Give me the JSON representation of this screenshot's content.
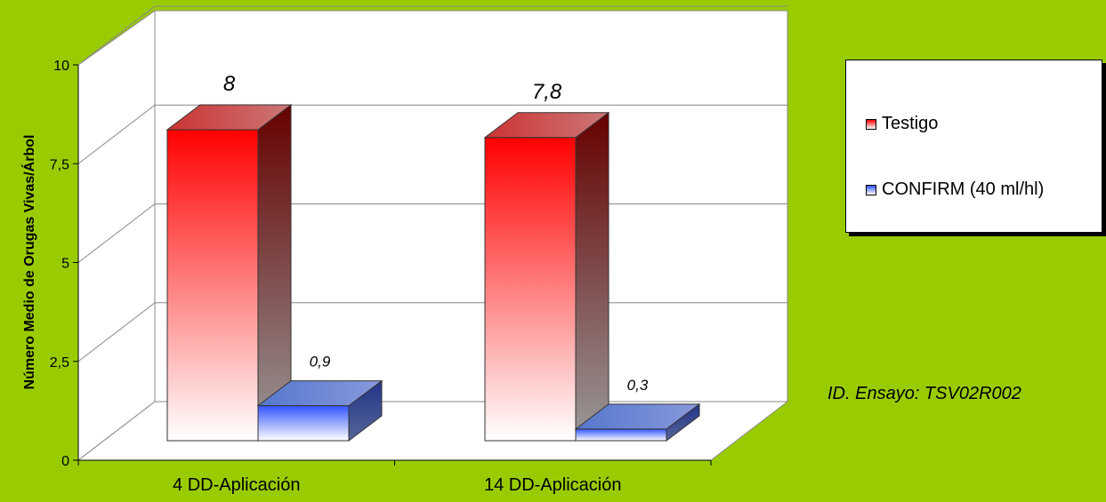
{
  "chart_data": {
    "type": "bar",
    "title": "",
    "xlabel": "",
    "ylabel": "Número Medio de Orugas Vivas/Árbol",
    "ylim": [
      0,
      10
    ],
    "yticks": [
      "0",
      "2,5",
      "5",
      "7,5",
      "10"
    ],
    "ytick_values": [
      0,
      2.5,
      5,
      7.5,
      10
    ],
    "categories": [
      "4 DD-Aplicación",
      "14 DD-Aplicación"
    ],
    "series": [
      {
        "name": "Testigo",
        "values": [
          8,
          7.8
        ],
        "labels": [
          "8",
          "7,8"
        ],
        "color": "#ff0000"
      },
      {
        "name": "CONFIRM (40 ml/hl)",
        "values": [
          0.9,
          0.3
        ],
        "labels": [
          "0,9",
          "0,3"
        ],
        "color": "#0033ff"
      }
    ],
    "style": "3d-clustered-column",
    "grid": true,
    "legend_position": "right"
  },
  "annotation": "ID. Ensayo: TSV02R002"
}
